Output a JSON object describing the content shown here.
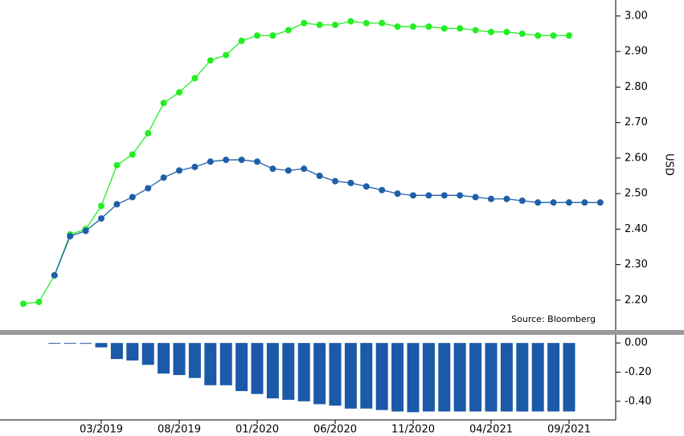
{
  "chart_data": [
    {
      "type": "line",
      "ylabel": "USD",
      "annotation": "Source: Bloomberg",
      "ylim": [
        2.116,
        3.045
      ],
      "yticks": [
        {
          "value": 2.2,
          "label": "2.20"
        },
        {
          "value": 2.3,
          "label": "2.30"
        },
        {
          "value": 2.4,
          "label": "2.40"
        },
        {
          "value": 2.5,
          "label": "2.50"
        },
        {
          "value": 2.6,
          "label": "2.60"
        },
        {
          "value": 2.7,
          "label": "2.70"
        },
        {
          "value": 2.8,
          "label": "2.80"
        },
        {
          "value": 2.9,
          "label": "2.90"
        },
        {
          "value": 3.0,
          "label": "3.00"
        }
      ],
      "series": [
        {
          "color": "#22ee22",
          "values": [
            2.19,
            2.195,
            2.27,
            2.385,
            2.4,
            2.465,
            2.58,
            2.61,
            2.67,
            2.755,
            2.785,
            2.825,
            2.875,
            2.89,
            2.93,
            2.945,
            2.945,
            2.96,
            2.98,
            2.975,
            2.975,
            2.985,
            2.98,
            2.98,
            2.97,
            2.97,
            2.97,
            2.965,
            2.965,
            2.96,
            2.955,
            2.955,
            2.95,
            2.945,
            2.945,
            2.945,
            null,
            null
          ]
        },
        {
          "color": "#1f5fa8",
          "values": [
            null,
            null,
            2.27,
            2.38,
            2.395,
            2.43,
            2.47,
            2.49,
            2.515,
            2.545,
            2.565,
            2.575,
            2.59,
            2.595,
            2.595,
            2.59,
            2.57,
            2.565,
            2.57,
            2.55,
            2.535,
            2.53,
            2.52,
            2.51,
            2.5,
            2.495,
            2.495,
            2.495,
            2.495,
            2.49,
            2.485,
            2.485,
            2.48,
            2.475,
            2.475,
            2.475,
            2.475,
            2.475
          ]
        }
      ]
    },
    {
      "type": "bar",
      "categories": [
        null,
        null,
        null,
        null,
        null,
        "03/2019",
        null,
        null,
        null,
        null,
        "08/2019",
        null,
        null,
        null,
        null,
        "01/2020",
        null,
        null,
        null,
        null,
        "06/2020",
        null,
        null,
        null,
        null,
        "11/2020",
        null,
        null,
        null,
        null,
        "04/2021",
        null,
        null,
        null,
        null,
        "09/2021",
        null,
        null
      ],
      "color": "#1a5aa8",
      "ylim": [
        -0.528,
        0.056
      ],
      "yticks": [
        {
          "value": 0,
          "label": "0.00"
        },
        {
          "value": -0.2,
          "label": "-0.20"
        },
        {
          "value": -0.4,
          "label": "-0.40"
        }
      ],
      "values": [
        null,
        null,
        -0.005,
        -0.005,
        -0.005,
        -0.03,
        -0.11,
        -0.12,
        -0.15,
        -0.21,
        -0.22,
        -0.24,
        -0.29,
        -0.29,
        -0.33,
        -0.35,
        -0.38,
        -0.39,
        -0.4,
        -0.42,
        -0.43,
        -0.45,
        -0.45,
        -0.46,
        -0.47,
        -0.475,
        -0.47,
        -0.47,
        -0.47,
        -0.47,
        -0.47,
        -0.47,
        -0.47,
        -0.47,
        -0.47,
        -0.47,
        null,
        null
      ]
    }
  ]
}
